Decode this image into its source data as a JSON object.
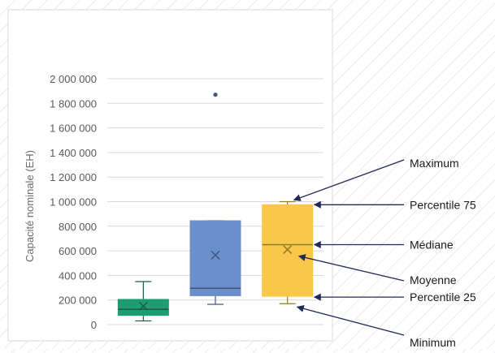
{
  "chart_data": {
    "type": "box",
    "ylabel": "Capacité nominale (EH)",
    "ylim": [
      0,
      2000000
    ],
    "yticks": [
      0,
      200000,
      400000,
      600000,
      800000,
      1000000,
      1200000,
      1400000,
      1600000,
      1800000,
      2000000
    ],
    "ytick_labels": [
      "0",
      "200 000",
      "400 000",
      "600 000",
      "800 000",
      "1 000 000",
      "1 200 000",
      "1 400 000",
      "1 600 000",
      "1 800 000",
      "2 000 000"
    ],
    "grid": true,
    "series": [
      {
        "color": "#1f9c72",
        "min": 30000,
        "q1": 75000,
        "median": 125000,
        "q3": 205000,
        "max": 350000,
        "mean": 150000,
        "outliers": []
      },
      {
        "color": "#6a8fcb",
        "min": 165000,
        "q1": 235000,
        "median": 295000,
        "q3": 845000,
        "max": 845000,
        "mean": 565000,
        "outliers": [
          1870000
        ]
      },
      {
        "color": "#f9c84a",
        "min": 170000,
        "q1": 230000,
        "median": 650000,
        "q3": 975000,
        "max": 1000000,
        "mean": 610000,
        "outliers": []
      }
    ],
    "annotations": [
      {
        "label": "Maximum",
        "target": "max"
      },
      {
        "label": "Percentile 75",
        "target": "q3"
      },
      {
        "label": "Médiane",
        "target": "median"
      },
      {
        "label": "Moyenne",
        "target": "mean"
      },
      {
        "label": "Percentile 25",
        "target": "q1"
      },
      {
        "label": "Minimum",
        "target": "min"
      }
    ],
    "annotation_color": "#1f2a5a"
  }
}
